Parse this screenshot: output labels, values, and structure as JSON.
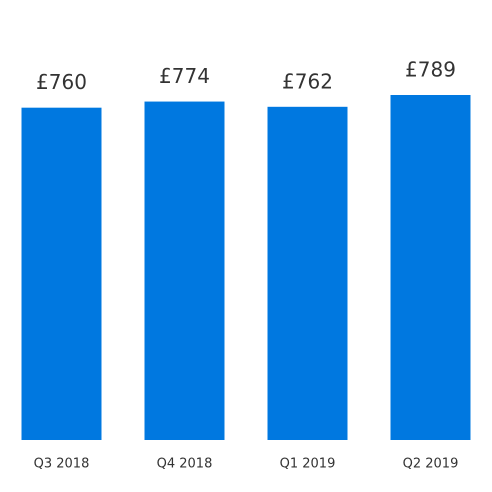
{
  "chart_data": {
    "type": "bar",
    "categories": [
      "Q3 2018",
      "Q4 2018",
      "Q1 2019",
      "Q2 2019"
    ],
    "values": [
      760,
      774,
      762,
      789
    ],
    "value_labels": [
      "£760",
      "£774",
      "£762",
      "£789"
    ],
    "color": "#0078e0"
  }
}
